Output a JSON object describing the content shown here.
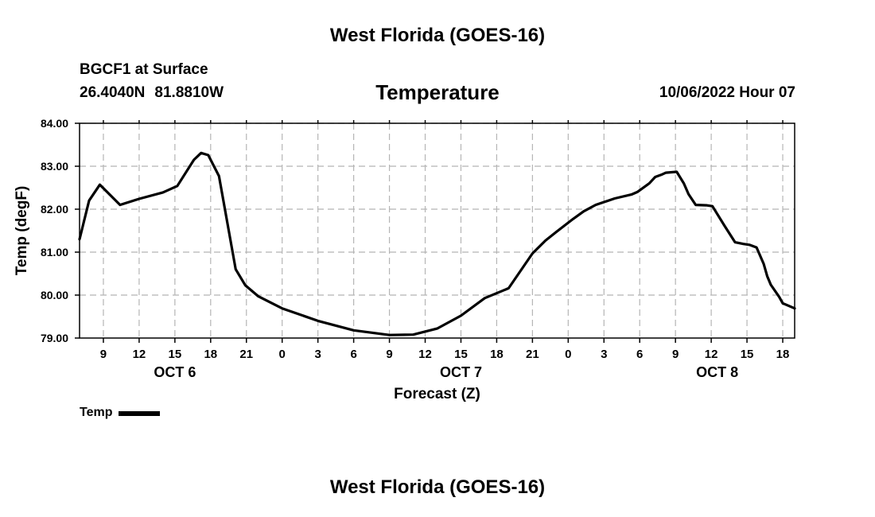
{
  "header": {
    "title_top": "West Florida (GOES-16)",
    "title_bottom": "West Florida (GOES-16)",
    "station": "BGCF1 at Surface",
    "lat": "26.4040N",
    "lon": "81.8810W",
    "datetime": "10/06/2022 Hour 07"
  },
  "legend": {
    "label": "Temp"
  },
  "chart_data": {
    "type": "line",
    "title": "Temperature",
    "xlabel": "Forecast (Z)",
    "ylabel": "Temp (degF)",
    "xlim": [
      7,
      67
    ],
    "ylim": [
      79,
      84
    ],
    "grid": true,
    "x_tick_values": [
      9,
      12,
      15,
      18,
      21,
      24,
      27,
      30,
      33,
      36,
      39,
      42,
      45,
      48,
      51,
      54,
      57,
      60,
      63,
      66
    ],
    "x_tick_labels": [
      "9",
      "12",
      "15",
      "18",
      "21",
      "0",
      "3",
      "6",
      "9",
      "12",
      "15",
      "18",
      "21",
      "0",
      "3",
      "6",
      "9",
      "12",
      "15",
      "18"
    ],
    "y_tick_values": [
      79,
      80,
      81,
      82,
      83,
      84
    ],
    "y_tick_labels": [
      "79.00",
      "80.00",
      "81.00",
      "82.00",
      "83.00",
      "84.00"
    ],
    "day_labels": [
      {
        "x": 15,
        "label": "OCT 6"
      },
      {
        "x": 39,
        "label": "OCT 7"
      },
      {
        "x": 60.5,
        "label": "OCT 8"
      }
    ],
    "series": [
      {
        "name": "Temp",
        "color": "#000000",
        "x": [
          7,
          7.8,
          8.7,
          10.4,
          12,
          14,
          15.2,
          16.6,
          17.2,
          17.8,
          18.7,
          20.1,
          20.9,
          22,
          24,
          27,
          30,
          33,
          35,
          37,
          39,
          41,
          43,
          45,
          46.1,
          47,
          47.7,
          48.4,
          49.3,
          50.3,
          51.9,
          53.3,
          53.8,
          54.8,
          55.3,
          55.8,
          56.2,
          57.1,
          57.7,
          58.1,
          58.7,
          59.6,
          60.1,
          61.1,
          62,
          62.7,
          63.2,
          63.8,
          64.4,
          64.7,
          65,
          65.7,
          66,
          67
        ],
        "values": [
          81.3,
          82.2,
          82.57,
          82.1,
          82.24,
          82.39,
          82.54,
          83.15,
          83.31,
          83.26,
          82.77,
          80.6,
          80.23,
          79.97,
          79.69,
          79.4,
          79.18,
          79.07,
          79.08,
          79.22,
          79.52,
          79.93,
          80.16,
          80.97,
          81.27,
          81.47,
          81.62,
          81.77,
          81.95,
          82.1,
          82.25,
          82.34,
          82.4,
          82.6,
          82.75,
          82.8,
          82.85,
          82.87,
          82.6,
          82.35,
          82.1,
          82.09,
          82.07,
          81.62,
          81.23,
          81.19,
          81.17,
          81.11,
          80.73,
          80.44,
          80.24,
          79.96,
          79.81,
          79.69
        ]
      }
    ]
  }
}
